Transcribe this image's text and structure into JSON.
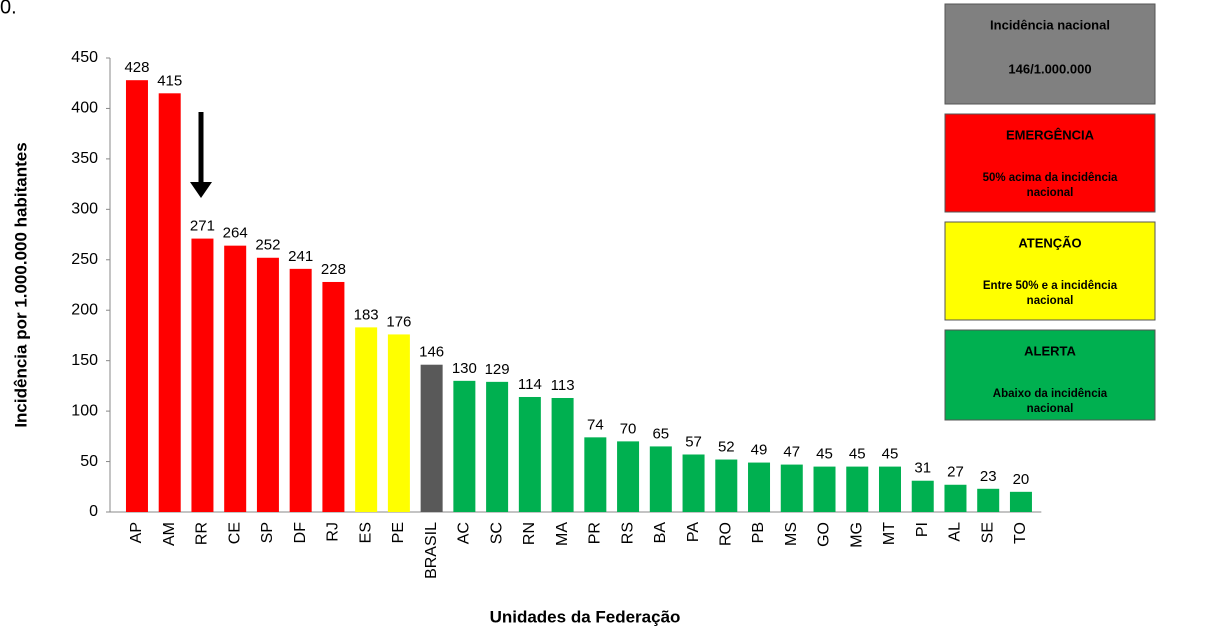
{
  "corner_text": "0.",
  "chart_data": {
    "type": "bar",
    "y_axis_label": "Incidência por  1.000.000  habitantes",
    "x_axis_label": "Unidades da Federação",
    "categories": [
      "AP",
      "AM",
      "RR",
      "CE",
      "SP",
      "DF",
      "RJ",
      "ES",
      "PE",
      "BRASIL",
      "AC",
      "SC",
      "RN",
      "MA",
      "PR",
      "RS",
      "BA",
      "PA",
      "RO",
      "PB",
      "MS",
      "GO",
      "MG",
      "MT",
      "PI",
      "AL",
      "SE",
      "TO"
    ],
    "values": [
      428,
      415,
      271,
      264,
      252,
      241,
      228,
      183,
      176,
      146,
      130,
      129,
      114,
      113,
      74,
      70,
      65,
      57,
      52,
      49,
      47,
      45,
      45,
      45,
      31,
      27,
      23,
      20
    ],
    "colors": [
      "#ff0000",
      "#ff0000",
      "#ff0000",
      "#ff0000",
      "#ff0000",
      "#ff0000",
      "#ff0000",
      "#ffff00",
      "#ffff00",
      "#595959",
      "#00b050",
      "#00b050",
      "#00b050",
      "#00b050",
      "#00b050",
      "#00b050",
      "#00b050",
      "#00b050",
      "#00b050",
      "#00b050",
      "#00b050",
      "#00b050",
      "#00b050",
      "#00b050",
      "#00b050",
      "#00b050",
      "#00b050",
      "#00b050"
    ],
    "ylim": [
      0,
      450
    ],
    "yticks": [
      0,
      50,
      100,
      150,
      200,
      250,
      300,
      350,
      400,
      450
    ],
    "grid": false
  },
  "legend_boxes": [
    {
      "title": "Incidência nacional",
      "lines": [
        "146/1.000.000"
      ],
      "color": "#808080"
    },
    {
      "title": "EMERGÊNCIA",
      "lines": [
        "50% acima da incidência",
        "nacional"
      ],
      "color": "#ff0000"
    },
    {
      "title": "ATENÇÃO",
      "lines": [
        "Entre 50% e a incidência",
        "nacional"
      ],
      "color": "#ffff00"
    },
    {
      "title": "ALERTA",
      "lines": [
        "Abaixo da incidência",
        "nacional"
      ],
      "color": "#00b050"
    }
  ]
}
